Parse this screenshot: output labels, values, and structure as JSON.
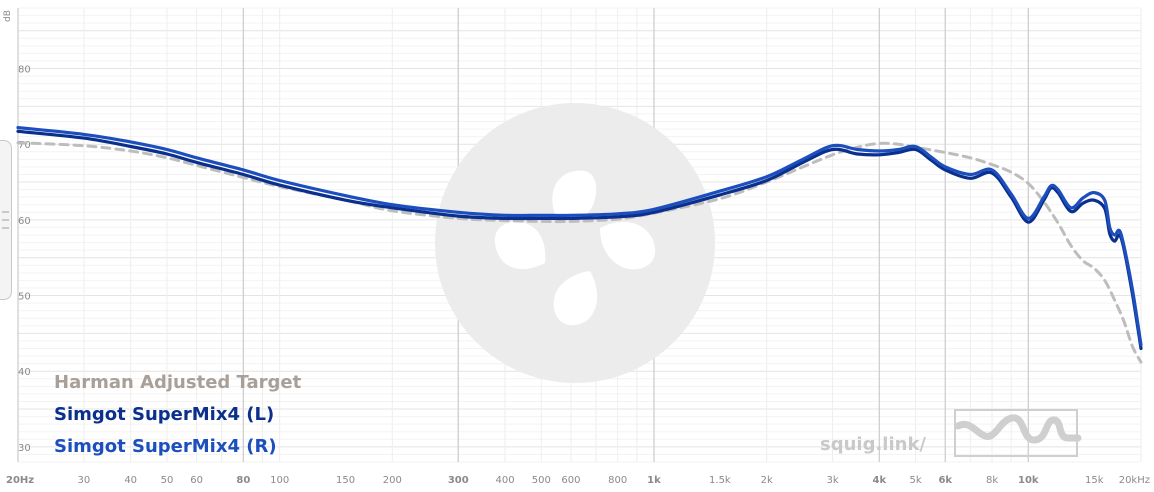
{
  "chart_data": {
    "type": "line",
    "x_scale": "log",
    "xlim": [
      20,
      20000
    ],
    "ylim": [
      28,
      88
    ],
    "ylabel": "dB",
    "y_ticks": [
      30,
      40,
      50,
      60,
      70,
      80
    ],
    "x_ticks": [
      {
        "v": 20,
        "label": "20Hz",
        "major": true
      },
      {
        "v": 30,
        "label": "30",
        "major": false
      },
      {
        "v": 40,
        "label": "40",
        "major": false
      },
      {
        "v": 50,
        "label": "50",
        "major": false
      },
      {
        "v": 60,
        "label": "60",
        "major": false
      },
      {
        "v": 80,
        "label": "80",
        "major": true
      },
      {
        "v": 100,
        "label": "100",
        "major": false
      },
      {
        "v": 150,
        "label": "150",
        "major": false
      },
      {
        "v": 200,
        "label": "200",
        "major": false
      },
      {
        "v": 300,
        "label": "300",
        "major": true
      },
      {
        "v": 400,
        "label": "400",
        "major": false
      },
      {
        "v": 500,
        "label": "500",
        "major": false
      },
      {
        "v": 600,
        "label": "600",
        "major": false
      },
      {
        "v": 800,
        "label": "800",
        "major": false
      },
      {
        "v": 1000,
        "label": "1k",
        "major": true
      },
      {
        "v": 1500,
        "label": "1.5k",
        "major": false
      },
      {
        "v": 2000,
        "label": "2k",
        "major": false
      },
      {
        "v": 3000,
        "label": "3k",
        "major": false
      },
      {
        "v": 4000,
        "label": "4k",
        "major": true
      },
      {
        "v": 5000,
        "label": "5k",
        "major": false
      },
      {
        "v": 6000,
        "label": "6k",
        "major": true
      },
      {
        "v": 8000,
        "label": "8k",
        "major": false
      },
      {
        "v": 10000,
        "label": "10k",
        "major": true
      },
      {
        "v": 15000,
        "label": "15k",
        "major": false
      },
      {
        "v": 20000,
        "label": "20kHz",
        "major": false
      }
    ],
    "grid": true,
    "legend_position": "bottom-left",
    "series": [
      {
        "name": "Harman Adjusted Target",
        "color": "#bdbdbd",
        "style": "dashed",
        "points": [
          [
            20,
            70.2
          ],
          [
            30,
            69.8
          ],
          [
            40,
            69.1
          ],
          [
            50,
            68.2
          ],
          [
            60,
            67.2
          ],
          [
            80,
            65.6
          ],
          [
            100,
            64.4
          ],
          [
            150,
            62.6
          ],
          [
            200,
            61.2
          ],
          [
            300,
            60.2
          ],
          [
            400,
            59.9
          ],
          [
            500,
            59.8
          ],
          [
            600,
            59.8
          ],
          [
            800,
            60.1
          ],
          [
            1000,
            60.9
          ],
          [
            1500,
            62.8
          ],
          [
            2000,
            65.0
          ],
          [
            2500,
            67.0
          ],
          [
            3000,
            68.6
          ],
          [
            3500,
            69.6
          ],
          [
            4000,
            70.1
          ],
          [
            4500,
            70.0
          ],
          [
            5000,
            69.6
          ],
          [
            6000,
            68.9
          ],
          [
            7000,
            68.2
          ],
          [
            8000,
            67.3
          ],
          [
            9000,
            66.3
          ],
          [
            10000,
            64.8
          ],
          [
            11000,
            62.4
          ],
          [
            12000,
            59.6
          ],
          [
            13000,
            56.6
          ],
          [
            14000,
            54.6
          ],
          [
            15000,
            53.6
          ],
          [
            16000,
            52.0
          ],
          [
            17000,
            49.4
          ],
          [
            18000,
            46.6
          ],
          [
            19000,
            43.2
          ],
          [
            20000,
            41.2
          ]
        ]
      },
      {
        "name": "Simgot SuperMix4 (L)",
        "color": "#0a2f8c",
        "style": "solid",
        "points": [
          [
            20,
            71.7
          ],
          [
            30,
            70.8
          ],
          [
            40,
            69.7
          ],
          [
            50,
            68.7
          ],
          [
            60,
            67.6
          ],
          [
            80,
            66.0
          ],
          [
            100,
            64.6
          ],
          [
            150,
            62.6
          ],
          [
            200,
            61.6
          ],
          [
            300,
            60.5
          ],
          [
            400,
            60.2
          ],
          [
            500,
            60.2
          ],
          [
            600,
            60.2
          ],
          [
            800,
            60.4
          ],
          [
            1000,
            61.0
          ],
          [
            1500,
            63.3
          ],
          [
            2000,
            65.2
          ],
          [
            2500,
            67.6
          ],
          [
            3000,
            69.3
          ],
          [
            3500,
            68.7
          ],
          [
            4000,
            68.6
          ],
          [
            4500,
            68.9
          ],
          [
            5000,
            69.3
          ],
          [
            5500,
            67.9
          ],
          [
            6000,
            66.6
          ],
          [
            7000,
            65.5
          ],
          [
            8000,
            66.2
          ],
          [
            9000,
            63.0
          ],
          [
            10000,
            59.7
          ],
          [
            11000,
            62.6
          ],
          [
            11500,
            64.2
          ],
          [
            12000,
            63.6
          ],
          [
            13000,
            61.1
          ],
          [
            14000,
            62.2
          ],
          [
            15000,
            62.6
          ],
          [
            16000,
            61.5
          ],
          [
            16500,
            58.2
          ],
          [
            17000,
            57.2
          ],
          [
            17500,
            58.0
          ],
          [
            18000,
            56.2
          ],
          [
            19000,
            50.0
          ],
          [
            20000,
            43.0
          ]
        ]
      },
      {
        "name": "Simgot SuperMix4 (R)",
        "color": "#1c4fbd",
        "style": "solid",
        "points": [
          [
            20,
            72.2
          ],
          [
            30,
            71.3
          ],
          [
            40,
            70.3
          ],
          [
            50,
            69.3
          ],
          [
            60,
            68.2
          ],
          [
            80,
            66.6
          ],
          [
            100,
            65.2
          ],
          [
            150,
            63.2
          ],
          [
            200,
            62.0
          ],
          [
            300,
            61.0
          ],
          [
            400,
            60.6
          ],
          [
            500,
            60.6
          ],
          [
            600,
            60.6
          ],
          [
            800,
            60.8
          ],
          [
            1000,
            61.4
          ],
          [
            1500,
            63.8
          ],
          [
            2000,
            65.7
          ],
          [
            2500,
            68.0
          ],
          [
            3000,
            69.8
          ],
          [
            3500,
            69.3
          ],
          [
            4000,
            69.1
          ],
          [
            4500,
            69.3
          ],
          [
            5000,
            69.7
          ],
          [
            5500,
            68.3
          ],
          [
            6000,
            67.0
          ],
          [
            7000,
            66.0
          ],
          [
            8000,
            66.6
          ],
          [
            9000,
            63.4
          ],
          [
            10000,
            60.2
          ],
          [
            11000,
            63.0
          ],
          [
            11500,
            64.5
          ],
          [
            12000,
            64.0
          ],
          [
            13000,
            61.6
          ],
          [
            14000,
            62.9
          ],
          [
            15000,
            63.6
          ],
          [
            16000,
            62.6
          ],
          [
            16500,
            59.0
          ],
          [
            17000,
            58.0
          ],
          [
            17500,
            58.6
          ],
          [
            18000,
            56.6
          ],
          [
            19000,
            50.6
          ],
          [
            20000,
            43.5
          ]
        ]
      }
    ]
  },
  "watermark": {
    "text": "squig.link/"
  }
}
